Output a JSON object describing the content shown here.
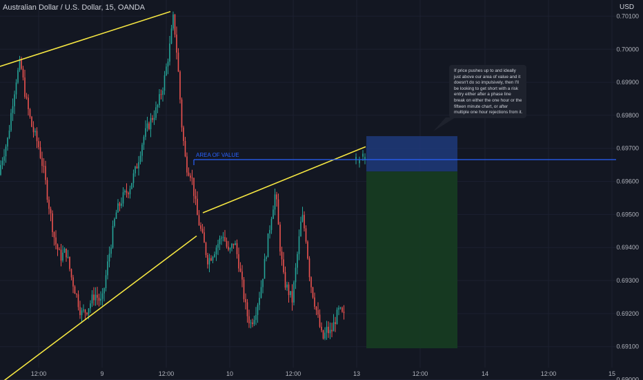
{
  "header": {
    "title": "Australian Dollar / U.S. Dollar, 15, OANDA",
    "currency": "USD"
  },
  "annotation": {
    "note": "If price pushes up to and ideally just above our area of value and it doesn't do so impulsively, then I'll be looking to get short with a risk entry either after a phase line break on either the one hour or the fifteen minute chart, or after multiple one hour rejections from it."
  },
  "colors": {
    "background": "#131722",
    "up_candle": "#26a69a",
    "down_candle": "#ef5350",
    "trendline": "#f5e642",
    "area_of_value": "#2962ff",
    "stop_zone": "#1f3a7a",
    "target_zone": "#163b22",
    "text": "#b2b5be"
  },
  "chart_data": {
    "type": "candlestick",
    "symbol": "Australian Dollar / U.S. Dollar",
    "interval": "15",
    "source": "OANDA",
    "x_ticks": [
      "12:00",
      "9",
      "12:00",
      "10",
      "12:00",
      "13",
      "12:00",
      "14",
      "12:00",
      "15"
    ],
    "y_ticks": [
      "0.70100",
      "0.70000",
      "0.69900",
      "0.69800",
      "0.69700",
      "0.69600",
      "0.69500",
      "0.69400",
      "0.69300",
      "0.69200",
      "0.69100",
      "0.69000"
    ],
    "ylim": [
      0.68999,
      0.70149
    ],
    "price_path": [
      [
        0,
        0.6962
      ],
      [
        7,
        0.6968
      ],
      [
        14,
        0.6973
      ],
      [
        20,
        0.6983
      ],
      [
        26,
        0.6991
      ],
      [
        32,
        0.6996
      ],
      [
        40,
        0.6985
      ],
      [
        48,
        0.6977
      ],
      [
        58,
        0.6971
      ],
      [
        66,
        0.6963
      ],
      [
        74,
        0.6952
      ],
      [
        82,
        0.6942
      ],
      [
        90,
        0.6937
      ],
      [
        98,
        0.6939
      ],
      [
        106,
        0.6931
      ],
      [
        114,
        0.6925
      ],
      [
        120,
        0.692
      ],
      [
        128,
        0.6921
      ],
      [
        140,
        0.6926
      ],
      [
        150,
        0.6923
      ],
      [
        160,
        0.6937
      ],
      [
        170,
        0.695
      ],
      [
        180,
        0.6955
      ],
      [
        190,
        0.6958
      ],
      [
        200,
        0.6964
      ],
      [
        210,
        0.6973
      ],
      [
        220,
        0.6978
      ],
      [
        230,
        0.6982
      ],
      [
        240,
        0.699
      ],
      [
        248,
        0.7
      ],
      [
        254,
        0.701
      ],
      [
        260,
        0.6996
      ],
      [
        266,
        0.6977
      ],
      [
        272,
        0.6965
      ],
      [
        280,
        0.6962
      ],
      [
        288,
        0.695
      ],
      [
        296,
        0.6943
      ],
      [
        304,
        0.6936
      ],
      [
        310,
        0.6938
      ],
      [
        318,
        0.6941
      ],
      [
        326,
        0.6944
      ],
      [
        334,
        0.6938
      ],
      [
        342,
        0.6942
      ],
      [
        348,
        0.6936
      ],
      [
        354,
        0.6928
      ],
      [
        360,
        0.692
      ],
      [
        366,
        0.6917
      ],
      [
        372,
        0.692
      ],
      [
        380,
        0.6927
      ],
      [
        388,
        0.6938
      ],
      [
        396,
        0.695
      ],
      [
        402,
        0.6957
      ],
      [
        408,
        0.6941
      ],
      [
        414,
        0.693
      ],
      [
        420,
        0.6927
      ],
      [
        426,
        0.6924
      ],
      [
        432,
        0.6935
      ],
      [
        440,
        0.695
      ],
      [
        446,
        0.6943
      ],
      [
        452,
        0.693
      ],
      [
        458,
        0.6924
      ],
      [
        464,
        0.6918
      ],
      [
        470,
        0.6912
      ],
      [
        476,
        0.6915
      ],
      [
        482,
        0.6914
      ],
      [
        488,
        0.6918
      ],
      [
        494,
        0.6921
      ],
      [
        500,
        0.6919
      ]
    ],
    "current_candles": [
      [
        516,
        0.6967
      ],
      [
        521,
        0.6966
      ],
      [
        526,
        0.6968
      ],
      [
        529,
        0.6967
      ]
    ],
    "trendlines": [
      {
        "from": [
          0,
          0.69948
        ],
        "to": [
          247,
          0.70114
        ]
      },
      {
        "from": [
          0,
          0.68988
        ],
        "to": [
          285,
          0.69435
        ]
      },
      {
        "from": [
          294,
          0.69505
        ],
        "to": [
          530,
          0.69705
        ]
      }
    ],
    "area_of_value": {
      "label": "AREA OF VALUE",
      "price": 0.69666
    },
    "position": {
      "type": "short",
      "entry": 0.6963,
      "stop": 0.69737,
      "target": 0.69095
    }
  }
}
